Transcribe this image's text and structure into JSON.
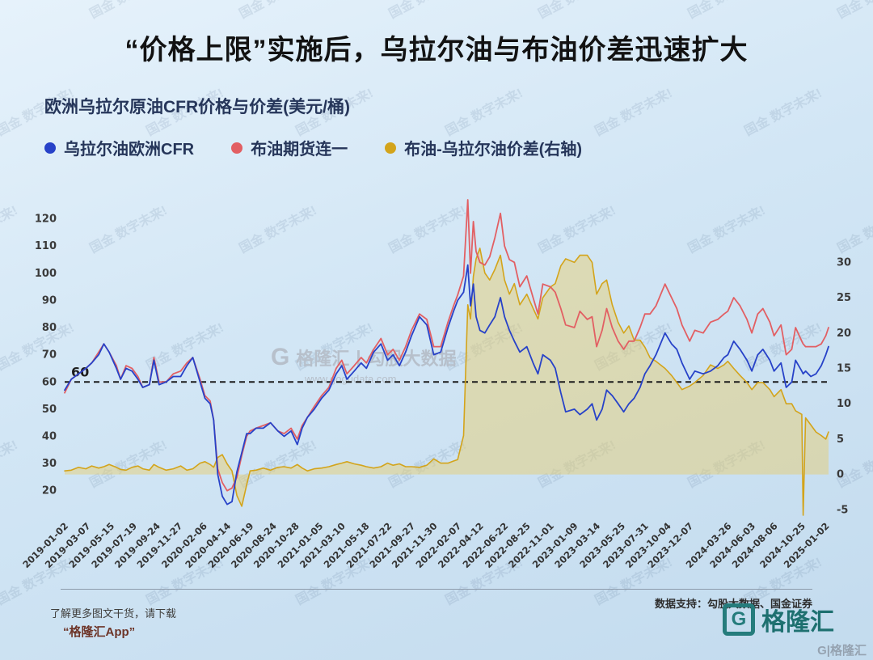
{
  "page": {
    "title": "“价格上限”实施后，乌拉尔油与布油价差迅速扩大",
    "watermark_tile": "国金 数字未来!",
    "center_watermark": {
      "logo_glyph": "G",
      "brand": "格隆汇",
      "divider": "|",
      "partner": "勾股大数据",
      "url": "www.gogudata.com"
    },
    "footer": {
      "source": "数据支持：勾股大数据、国金证券",
      "promo_line1": "了解更多图文干货，请下载",
      "promo_line2": "“格隆汇App”",
      "brand_glyph": "G",
      "brand": "格隆汇",
      "corner_watermark": "G|格隆汇"
    }
  },
  "chart_data": {
    "type": "line",
    "title": "欧洲乌拉尔原油CFR价格与价差(美元/桶)",
    "legend": [
      {
        "label": "乌拉尔油欧洲CFR",
        "color": "#2742c8",
        "axis": "left"
      },
      {
        "label": "布油期货连一",
        "color": "#e25f63",
        "axis": "left"
      },
      {
        "label": "布油-乌拉尔油价差(右轴)",
        "color": "#d3a41b",
        "axis": "right",
        "fill": true
      }
    ],
    "annotation": {
      "label": "60",
      "value": 60
    },
    "ylim_left": [
      11,
      127
    ],
    "y_ticks_left": [
      20,
      30,
      40,
      50,
      60,
      70,
      80,
      90,
      100,
      110,
      120
    ],
    "ylim_right": [
      -5.77,
      38.85
    ],
    "y_ticks_right": [
      -5,
      0,
      5,
      10,
      15,
      20,
      25,
      30
    ],
    "grid": false,
    "legend_position": "top",
    "x_ticks": [
      "2019-01-02",
      "2019-03-07",
      "2019-05-15",
      "2019-07-19",
      "2019-09-24",
      "2019-11-27",
      "2020-02-06",
      "2020-04-14",
      "2020-06-19",
      "2020-08-24",
      "2020-10-28",
      "2021-01-05",
      "2021-03-10",
      "2021-05-18",
      "2021-07-22",
      "2021-09-27",
      "2021-11-30",
      "2022-02-07",
      "2022-04-12",
      "2022-06-22",
      "2022-08-25",
      "2022-11-01",
      "2023-01-09",
      "2023-03-14",
      "2023-05-25",
      "2023-07-31",
      "2023-10-04",
      "2023-12-07",
      "2024-03-26",
      "2024-06-03",
      "2024-08-06",
      "2024-10-25",
      "2025-01-02"
    ],
    "x": [
      "2019-01-02",
      "2019-01-21",
      "2019-02-11",
      "2019-03-04",
      "2019-03-21",
      "2019-04-10",
      "2019-04-25",
      "2019-05-10",
      "2019-05-31",
      "2019-06-12",
      "2019-06-28",
      "2019-07-15",
      "2019-08-01",
      "2019-08-15",
      "2019-09-03",
      "2019-09-16",
      "2019-10-01",
      "2019-10-21",
      "2019-11-11",
      "2019-12-02",
      "2019-12-20",
      "2020-01-06",
      "2020-01-27",
      "2020-02-10",
      "2020-02-25",
      "2020-03-06",
      "2020-03-18",
      "2020-03-31",
      "2020-04-14",
      "2020-04-28",
      "2020-05-12",
      "2020-05-26",
      "2020-06-09",
      "2020-06-19",
      "2020-07-06",
      "2020-07-27",
      "2020-08-17",
      "2020-09-07",
      "2020-09-25",
      "2020-10-15",
      "2020-11-02",
      "2020-11-16",
      "2020-12-01",
      "2020-12-21",
      "2021-01-11",
      "2021-02-01",
      "2021-02-22",
      "2021-03-10",
      "2021-03-25",
      "2021-04-15",
      "2021-05-05",
      "2021-05-20",
      "2021-06-10",
      "2021-07-01",
      "2021-07-20",
      "2021-08-05",
      "2021-08-23",
      "2021-09-10",
      "2021-09-27",
      "2021-10-20",
      "2021-11-10",
      "2021-11-30",
      "2021-12-20",
      "2022-01-10",
      "2022-01-26",
      "2022-02-07",
      "2022-02-24",
      "2022-03-08",
      "2022-03-16",
      "2022-03-24",
      "2022-04-01",
      "2022-04-12",
      "2022-04-26",
      "2022-05-10",
      "2022-05-25",
      "2022-06-10",
      "2022-06-22",
      "2022-07-06",
      "2022-07-20",
      "2022-08-05",
      "2022-08-25",
      "2022-09-12",
      "2022-09-26",
      "2022-10-10",
      "2022-11-01",
      "2022-11-15",
      "2022-12-01",
      "2022-12-15",
      "2023-01-09",
      "2023-01-25",
      "2023-02-15",
      "2023-03-01",
      "2023-03-14",
      "2023-03-30",
      "2023-04-12",
      "2023-04-28",
      "2023-05-15",
      "2023-05-31",
      "2023-06-15",
      "2023-06-30",
      "2023-07-17",
      "2023-07-31",
      "2023-08-15",
      "2023-09-01",
      "2023-09-27",
      "2023-10-16",
      "2023-10-31",
      "2023-11-15",
      "2023-12-07",
      "2023-12-22",
      "2024-01-15",
      "2024-02-05",
      "2024-02-26",
      "2024-03-15",
      "2024-03-26",
      "2024-04-12",
      "2024-04-30",
      "2024-05-20",
      "2024-06-03",
      "2024-06-20",
      "2024-07-05",
      "2024-07-25",
      "2024-08-06",
      "2024-08-26",
      "2024-09-10",
      "2024-09-26",
      "2024-10-07",
      "2024-10-25",
      "2024-10-29",
      "2024-11-05",
      "2024-11-20",
      "2024-12-05",
      "2024-12-20",
      "2025-01-02",
      "2025-01-10"
    ],
    "series": [
      {
        "name": "乌拉尔油欧洲CFR",
        "axis": "left",
        "color": "#2742c8",
        "values": [
          57,
          61,
          63,
          65,
          67,
          70,
          74,
          71,
          65,
          61,
          65,
          64,
          61,
          58,
          59,
          68,
          59,
          60,
          62,
          62,
          66,
          69,
          60,
          54,
          52,
          46,
          26,
          18,
          15,
          16,
          27,
          34,
          41,
          41,
          43,
          43,
          45,
          42,
          40,
          42,
          37,
          43,
          47,
          50,
          54,
          57,
          63,
          66,
          61,
          64,
          67,
          65,
          71,
          74,
          68,
          70,
          66,
          71,
          77,
          84,
          81,
          70,
          71,
          80,
          86,
          90,
          93,
          103,
          88,
          96,
          84,
          79,
          78,
          81,
          84,
          91,
          84,
          79,
          75,
          71,
          73,
          67,
          63,
          70,
          68,
          65,
          56,
          49,
          50,
          48,
          50,
          52,
          46,
          50,
          57,
          55,
          52,
          49,
          52,
          54,
          58,
          63,
          66,
          70,
          78,
          74,
          72,
          67,
          61,
          64,
          63,
          64,
          66,
          69,
          70,
          75,
          72,
          68,
          64,
          70,
          72,
          68,
          64,
          67,
          58,
          60,
          68,
          64,
          63,
          64,
          62,
          63,
          66,
          70,
          73
        ]
      },
      {
        "name": "布油期货连一",
        "axis": "left",
        "color": "#e25f63",
        "values": [
          56,
          61,
          63,
          65,
          67,
          71,
          74,
          71,
          66,
          61,
          66,
          65,
          62,
          58,
          59,
          69,
          60,
          60,
          63,
          64,
          67,
          69,
          61,
          55,
          53,
          46,
          28,
          23,
          20,
          21,
          25,
          33,
          40,
          42,
          43,
          44,
          45,
          42,
          41,
          43,
          39,
          44,
          47,
          51,
          55,
          58,
          65,
          68,
          63,
          66,
          69,
          67,
          72,
          76,
          70,
          72,
          68,
          73,
          79,
          85,
          83,
          73,
          73,
          82,
          88,
          92,
          99,
          128,
          100,
          119,
          108,
          104,
          103,
          106,
          113,
          122,
          110,
          105,
          104,
          95,
          99,
          91,
          85,
          96,
          95,
          93,
          87,
          81,
          80,
          86,
          83,
          84,
          73,
          79,
          87,
          80,
          75,
          72,
          75,
          75,
          80,
          85,
          85,
          88,
          96,
          91,
          87,
          81,
          75,
          79,
          78,
          82,
          83,
          85,
          86,
          91,
          88,
          83,
          78,
          85,
          87,
          82,
          77,
          81,
          70,
          72,
          80,
          75,
          74,
          73,
          73,
          73,
          74,
          77,
          80
        ]
      },
      {
        "name": "布油-乌拉尔油价差(右轴)",
        "axis": "right",
        "color": "#d3a41b",
        "area_fill": "rgba(233,203,105,0.45)",
        "values": [
          0.5,
          0.6,
          1.0,
          0.8,
          1.2,
          0.9,
          1.1,
          1.4,
          1.0,
          0.7,
          0.6,
          1.0,
          1.2,
          0.8,
          0.6,
          1.4,
          1.0,
          0.6,
          0.8,
          1.2,
          0.6,
          0.8,
          1.6,
          1.8,
          1.4,
          1.0,
          2.4,
          2.8,
          1.5,
          0.5,
          -3.0,
          -4.5,
          -1.5,
          0.5,
          0.6,
          0.9,
          0.6,
          1.0,
          1.1,
          0.9,
          1.4,
          0.9,
          0.5,
          0.8,
          0.9,
          1.1,
          1.4,
          1.6,
          1.8,
          1.5,
          1.3,
          1.1,
          0.9,
          1.1,
          1.6,
          1.3,
          1.5,
          1.1,
          1.1,
          1.0,
          1.3,
          2.2,
          1.6,
          1.6,
          1.9,
          2.1,
          5.5,
          24,
          22,
          28,
          30.5,
          32,
          28.5,
          27.5,
          29,
          31,
          27.5,
          25.5,
          27,
          24,
          25.5,
          23.5,
          22,
          25,
          26.5,
          27,
          29.5,
          30.5,
          30,
          31,
          31,
          30,
          25.5,
          27,
          27.5,
          24,
          21.5,
          20,
          21,
          19,
          19,
          18,
          16.5,
          16,
          15,
          14,
          13,
          12,
          12.5,
          13,
          14,
          15.5,
          15,
          15.5,
          16,
          15,
          14,
          13,
          12,
          13,
          13,
          12,
          11,
          12,
          10,
          10,
          9,
          8.5,
          -7,
          8,
          7,
          6,
          5.5,
          5,
          6
        ]
      }
    ]
  }
}
